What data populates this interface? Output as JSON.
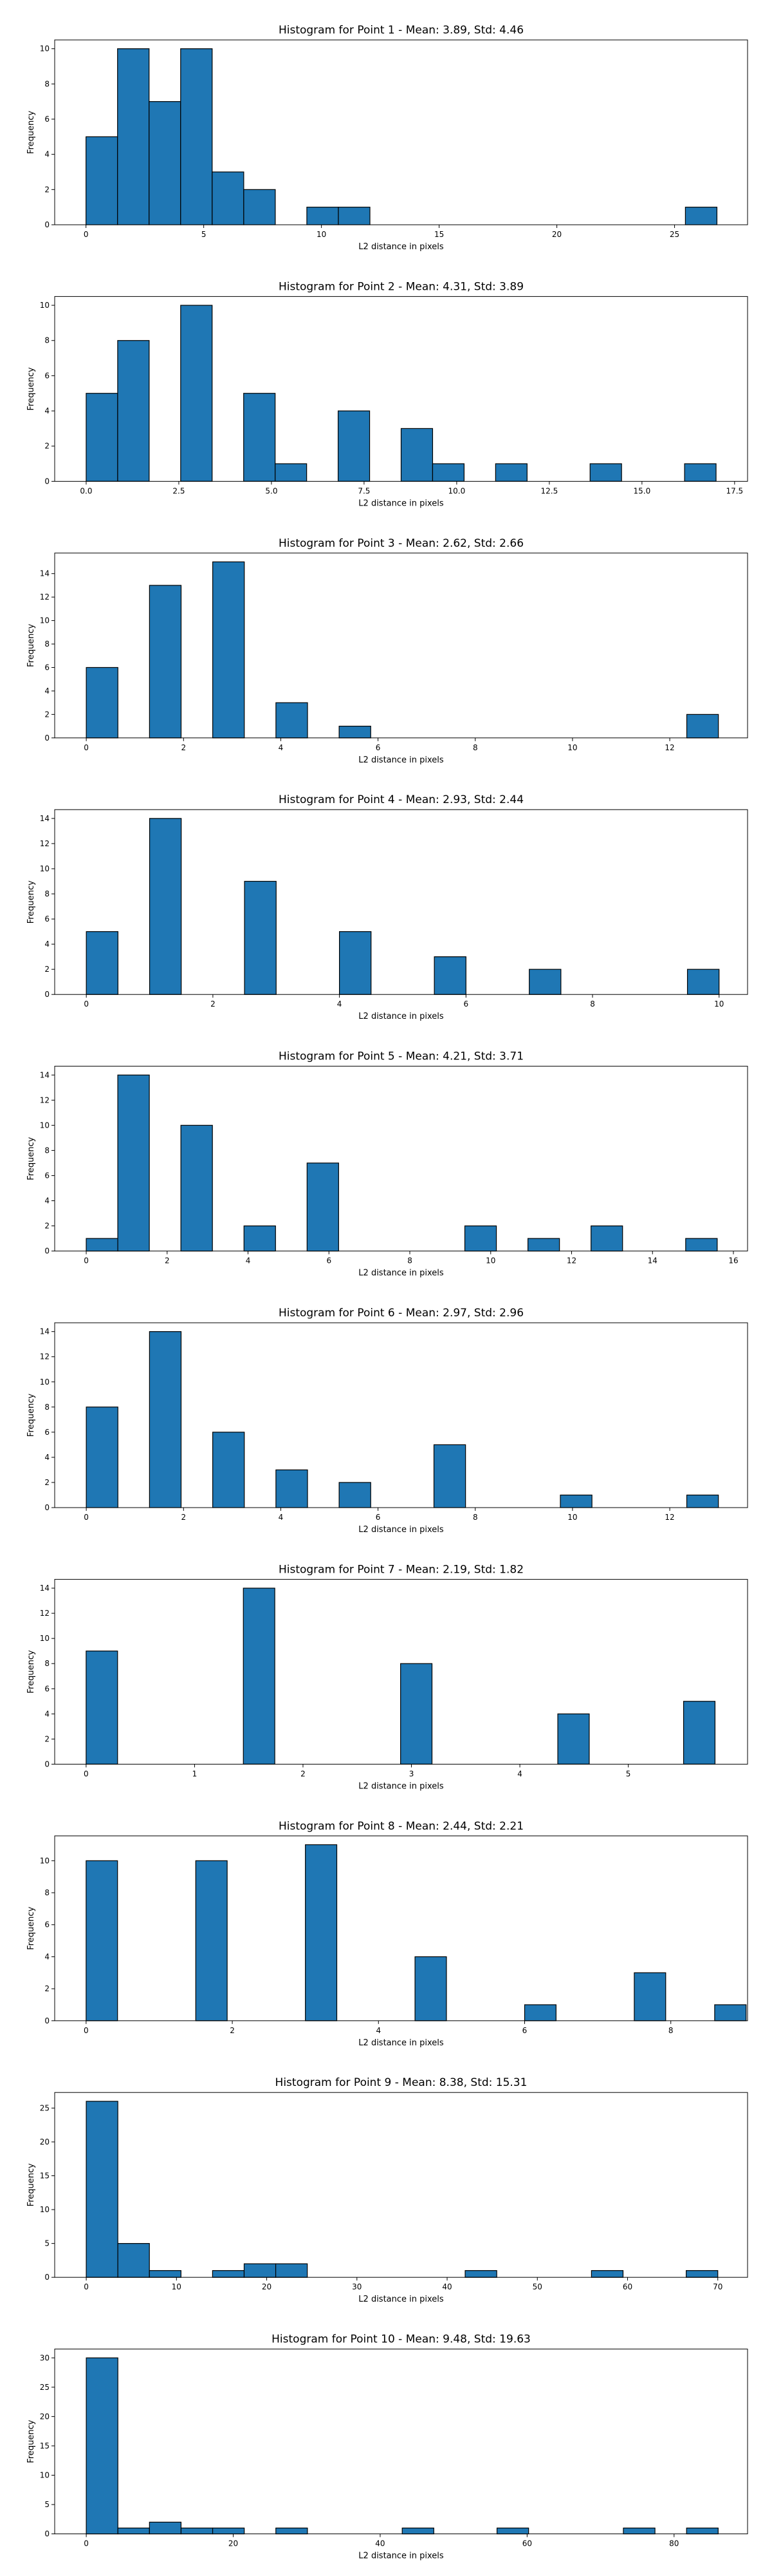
{
  "chart_data": [
    {
      "type": "bar",
      "title": "Histogram for Point 1 - Mean: 3.89, Std: 4.46",
      "xlabel": "L2 distance in pixels",
      "ylabel": "Frequency",
      "xlim": [
        -1.33,
        28.1
      ],
      "ylim": [
        0,
        10.5
      ],
      "xticks": [
        0,
        5,
        10,
        15,
        20,
        25
      ],
      "xtick_labels": [
        "0",
        "5",
        "10",
        "15",
        "20",
        "25"
      ],
      "yticks": [
        0,
        2,
        4,
        6,
        8,
        10
      ],
      "ytick_labels": [
        "0",
        "2",
        "4",
        "6",
        "8",
        "10"
      ],
      "bin_width": 1.34,
      "bins": [
        {
          "x": 0.0,
          "value": 5
        },
        {
          "x": 1.34,
          "value": 10
        },
        {
          "x": 2.68,
          "value": 7
        },
        {
          "x": 4.02,
          "value": 10
        },
        {
          "x": 5.36,
          "value": 3
        },
        {
          "x": 6.7,
          "value": 2
        },
        {
          "x": 9.38,
          "value": 1
        },
        {
          "x": 10.72,
          "value": 1
        },
        {
          "x": 25.46,
          "value": 1
        }
      ],
      "grid": false,
      "color": "#1f77b4",
      "edge_color": "#000000"
    },
    {
      "type": "bar",
      "title": "Histogram for Point 2 - Mean: 4.31, Std: 3.89",
      "xlabel": "L2 distance in pixels",
      "ylabel": "Frequency",
      "xlim": [
        -0.85,
        17.85
      ],
      "ylim": [
        0,
        10.5
      ],
      "xticks": [
        0,
        2.5,
        5,
        7.5,
        10,
        12.5,
        15,
        17.5
      ],
      "xtick_labels": [
        "0.0",
        "2.5",
        "5.0",
        "7.5",
        "10.0",
        "12.5",
        "15.0",
        "17.5"
      ],
      "yticks": [
        0,
        2,
        4,
        6,
        8,
        10
      ],
      "ytick_labels": [
        "0",
        "2",
        "4",
        "6",
        "8",
        "10"
      ],
      "bin_width": 0.85,
      "bins": [
        {
          "x": 0.0,
          "value": 5
        },
        {
          "x": 0.85,
          "value": 8
        },
        {
          "x": 2.55,
          "value": 10
        },
        {
          "x": 4.25,
          "value": 5
        },
        {
          "x": 5.1,
          "value": 1
        },
        {
          "x": 6.8,
          "value": 4
        },
        {
          "x": 8.5,
          "value": 3
        },
        {
          "x": 9.35,
          "value": 1
        },
        {
          "x": 11.05,
          "value": 1
        },
        {
          "x": 13.6,
          "value": 1
        },
        {
          "x": 16.15,
          "value": 1
        }
      ],
      "grid": false,
      "color": "#1f77b4",
      "edge_color": "#000000"
    },
    {
      "type": "bar",
      "title": "Histogram for Point 3 - Mean: 2.62, Std: 2.66",
      "xlabel": "L2 distance in pixels",
      "ylabel": "Frequency",
      "xlim": [
        -0.65,
        13.6
      ],
      "ylim": [
        0,
        15.75
      ],
      "xticks": [
        0,
        2,
        4,
        6,
        8,
        10,
        12
      ],
      "xtick_labels": [
        "0",
        "2",
        "4",
        "6",
        "8",
        "10",
        "12"
      ],
      "yticks": [
        0,
        2,
        4,
        6,
        8,
        10,
        12,
        14
      ],
      "ytick_labels": [
        "0",
        "2",
        "4",
        "6",
        "8",
        "10",
        "12",
        "14"
      ],
      "bin_width": 0.65,
      "bins": [
        {
          "x": 0.0,
          "value": 6
        },
        {
          "x": 1.3,
          "value": 13
        },
        {
          "x": 2.6,
          "value": 15
        },
        {
          "x": 3.9,
          "value": 3
        },
        {
          "x": 5.2,
          "value": 1
        },
        {
          "x": 12.35,
          "value": 2
        }
      ],
      "grid": false,
      "color": "#1f77b4",
      "edge_color": "#000000"
    },
    {
      "type": "bar",
      "title": "Histogram for Point 4 - Mean: 2.93, Std: 2.44",
      "xlabel": "L2 distance in pixels",
      "ylabel": "Frequency",
      "xlim": [
        -0.5,
        10.45
      ],
      "ylim": [
        0,
        14.7
      ],
      "xticks": [
        0,
        2,
        4,
        6,
        8,
        10
      ],
      "xtick_labels": [
        "0",
        "2",
        "4",
        "6",
        "8",
        "10"
      ],
      "yticks": [
        0,
        2,
        4,
        6,
        8,
        10,
        12,
        14
      ],
      "ytick_labels": [
        "0",
        "2",
        "4",
        "6",
        "8",
        "10",
        "12",
        "14"
      ],
      "bin_width": 0.5,
      "bins": [
        {
          "x": 0.0,
          "value": 5
        },
        {
          "x": 1.0,
          "value": 14
        },
        {
          "x": 2.5,
          "value": 9
        },
        {
          "x": 4.0,
          "value": 5
        },
        {
          "x": 5.5,
          "value": 3
        },
        {
          "x": 7.0,
          "value": 2
        },
        {
          "x": 9.5,
          "value": 2
        }
      ],
      "grid": false,
      "color": "#1f77b4",
      "edge_color": "#000000"
    },
    {
      "type": "bar",
      "title": "Histogram for Point 5 - Mean: 4.21, Std: 3.71",
      "xlabel": "L2 distance in pixels",
      "ylabel": "Frequency",
      "xlim": [
        -0.78,
        16.35
      ],
      "ylim": [
        0,
        14.7
      ],
      "xticks": [
        0,
        2,
        4,
        6,
        8,
        10,
        12,
        14,
        16
      ],
      "xtick_labels": [
        "0",
        "2",
        "4",
        "6",
        "8",
        "10",
        "12",
        "14",
        "16"
      ],
      "yticks": [
        0,
        2,
        4,
        6,
        8,
        10,
        12,
        14
      ],
      "ytick_labels": [
        "0",
        "2",
        "4",
        "6",
        "8",
        "10",
        "12",
        "14"
      ],
      "bin_width": 0.78,
      "bins": [
        {
          "x": 0.0,
          "value": 1
        },
        {
          "x": 0.78,
          "value": 14
        },
        {
          "x": 2.34,
          "value": 10
        },
        {
          "x": 3.9,
          "value": 2
        },
        {
          "x": 5.46,
          "value": 7
        },
        {
          "x": 9.36,
          "value": 2
        },
        {
          "x": 10.92,
          "value": 1
        },
        {
          "x": 12.48,
          "value": 2
        },
        {
          "x": 14.82,
          "value": 1
        }
      ],
      "grid": false,
      "color": "#1f77b4",
      "edge_color": "#000000"
    },
    {
      "type": "bar",
      "title": "Histogram for Point 6 - Mean: 2.97, Std: 2.96",
      "xlabel": "L2 distance in pixels",
      "ylabel": "Frequency",
      "xlim": [
        -0.65,
        13.6
      ],
      "ylim": [
        0,
        14.7
      ],
      "xticks": [
        0,
        2,
        4,
        6,
        8,
        10,
        12
      ],
      "xtick_labels": [
        "0",
        "2",
        "4",
        "6",
        "8",
        "10",
        "12"
      ],
      "yticks": [
        0,
        2,
        4,
        6,
        8,
        10,
        12,
        14
      ],
      "ytick_labels": [
        "0",
        "2",
        "4",
        "6",
        "8",
        "10",
        "12",
        "14"
      ],
      "bin_width": 0.65,
      "bins": [
        {
          "x": 0.0,
          "value": 8
        },
        {
          "x": 1.3,
          "value": 14
        },
        {
          "x": 2.6,
          "value": 6
        },
        {
          "x": 3.9,
          "value": 3
        },
        {
          "x": 5.2,
          "value": 2
        },
        {
          "x": 7.15,
          "value": 5
        },
        {
          "x": 9.75,
          "value": 1
        },
        {
          "x": 12.35,
          "value": 1
        }
      ],
      "grid": false,
      "color": "#1f77b4",
      "edge_color": "#000000"
    },
    {
      "type": "bar",
      "title": "Histogram for Point 7 - Mean: 2.19, Std: 1.82",
      "xlabel": "L2 distance in pixels",
      "ylabel": "Frequency",
      "xlim": [
        -0.29,
        6.1
      ],
      "ylim": [
        0,
        14.7
      ],
      "xticks": [
        0,
        1,
        2,
        3,
        4,
        5
      ],
      "xtick_labels": [
        "0",
        "1",
        "2",
        "3",
        "4",
        "5"
      ],
      "yticks": [
        0,
        2,
        4,
        6,
        8,
        10,
        12,
        14
      ],
      "ytick_labels": [
        "0",
        "2",
        "4",
        "6",
        "8",
        "10",
        "12",
        "14"
      ],
      "bin_width": 0.29,
      "bins": [
        {
          "x": 0.0,
          "value": 9
        },
        {
          "x": 1.45,
          "value": 14
        },
        {
          "x": 2.9,
          "value": 8
        },
        {
          "x": 4.35,
          "value": 4
        },
        {
          "x": 5.51,
          "value": 5
        }
      ],
      "grid": false,
      "color": "#1f77b4",
      "edge_color": "#000000"
    },
    {
      "type": "bar",
      "title": "Histogram for Point 8 - Mean: 2.44, Std: 2.21",
      "xlabel": "L2 distance in pixels",
      "ylabel": "Frequency",
      "xlim": [
        -0.43,
        9.05
      ],
      "ylim": [
        0,
        11.55
      ],
      "xticks": [
        0,
        2,
        4,
        6,
        8
      ],
      "xtick_labels": [
        "0",
        "2",
        "4",
        "6",
        "8"
      ],
      "yticks": [
        0,
        2,
        4,
        6,
        8,
        10
      ],
      "ytick_labels": [
        "0",
        "2",
        "4",
        "6",
        "8",
        "10"
      ],
      "bin_width": 0.43,
      "bins": [
        {
          "x": 0.0,
          "value": 10
        },
        {
          "x": 1.5,
          "value": 10
        },
        {
          "x": 3.0,
          "value": 11
        },
        {
          "x": 4.5,
          "value": 4
        },
        {
          "x": 6.0,
          "value": 1
        },
        {
          "x": 7.5,
          "value": 3
        },
        {
          "x": 8.6,
          "value": 1
        }
      ],
      "grid": false,
      "color": "#1f77b4",
      "edge_color": "#000000"
    },
    {
      "type": "bar",
      "title": "Histogram for Point 9 - Mean: 8.38, Std: 15.31",
      "xlabel": "L2 distance in pixels",
      "ylabel": "Frequency",
      "xlim": [
        -3.5,
        73.3
      ],
      "ylim": [
        0,
        27.3
      ],
      "xticks": [
        0,
        10,
        20,
        30,
        40,
        50,
        60,
        70
      ],
      "xtick_labels": [
        "0",
        "10",
        "20",
        "30",
        "40",
        "50",
        "60",
        "70"
      ],
      "yticks": [
        0,
        5,
        10,
        15,
        20,
        25
      ],
      "ytick_labels": [
        "0",
        "5",
        "10",
        "15",
        "20",
        "25"
      ],
      "bin_width": 3.5,
      "bins": [
        {
          "x": 0.0,
          "value": 26
        },
        {
          "x": 3.5,
          "value": 5
        },
        {
          "x": 7.0,
          "value": 1
        },
        {
          "x": 14.0,
          "value": 1
        },
        {
          "x": 17.5,
          "value": 2
        },
        {
          "x": 21.0,
          "value": 2
        },
        {
          "x": 42.0,
          "value": 1
        },
        {
          "x": 56.0,
          "value": 1
        },
        {
          "x": 66.5,
          "value": 1
        }
      ],
      "grid": false,
      "color": "#1f77b4",
      "edge_color": "#000000"
    },
    {
      "type": "bar",
      "title": "Histogram for Point 10 - Mean: 9.48, Std: 19.63",
      "xlabel": "L2 distance in pixels",
      "ylabel": "Frequency",
      "xlim": [
        -4.3,
        90.0
      ],
      "ylim": [
        0,
        31.5
      ],
      "xticks": [
        0,
        20,
        40,
        60,
        80
      ],
      "xtick_labels": [
        "0",
        "20",
        "40",
        "60",
        "80"
      ],
      "yticks": [
        0,
        5,
        10,
        15,
        20,
        25,
        30
      ],
      "ytick_labels": [
        "0",
        "5",
        "10",
        "15",
        "20",
        "25",
        "30"
      ],
      "bin_width": 4.3,
      "bins": [
        {
          "x": 0.0,
          "value": 30
        },
        {
          "x": 4.3,
          "value": 1
        },
        {
          "x": 8.6,
          "value": 2
        },
        {
          "x": 12.9,
          "value": 1
        },
        {
          "x": 17.2,
          "value": 1
        },
        {
          "x": 25.8,
          "value": 1
        },
        {
          "x": 43.0,
          "value": 1
        },
        {
          "x": 55.9,
          "value": 1
        },
        {
          "x": 73.1,
          "value": 1
        },
        {
          "x": 81.7,
          "value": 1
        }
      ],
      "grid": false,
      "color": "#1f77b4",
      "edge_color": "#000000"
    }
  ]
}
